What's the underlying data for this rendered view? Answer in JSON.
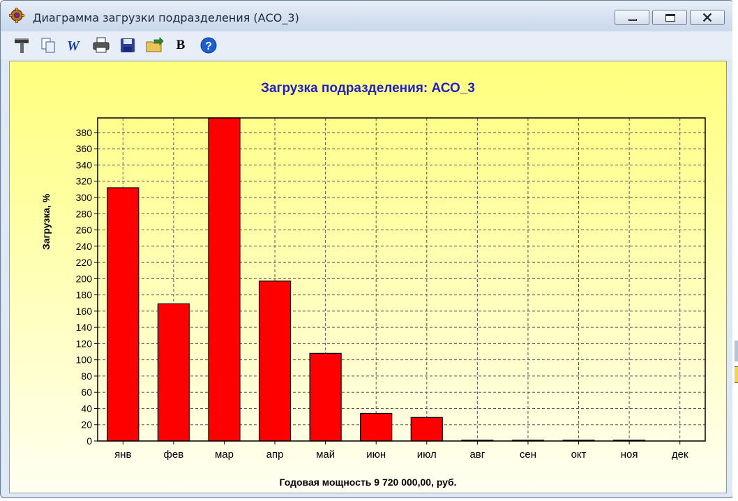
{
  "window": {
    "title": "Диаграмма загрузки подразделения (АСО_3)",
    "icon": "settings-gear-app-icon",
    "controls": [
      "minimize",
      "maximize",
      "close"
    ]
  },
  "toolbar": {
    "buttons": [
      {
        "icon": "hammer-icon"
      },
      {
        "icon": "copy-icon"
      },
      {
        "icon": "word-export-icon"
      },
      {
        "icon": "print-icon"
      },
      {
        "icon": "save-icon"
      },
      {
        "icon": "export-icon"
      },
      {
        "icon": "bold-b-icon",
        "label": "B"
      },
      {
        "icon": "help-icon"
      }
    ]
  },
  "chart_data": {
    "type": "bar",
    "title": "Загрузка подразделения: АСО_3",
    "ylabel": "Загрузка, %",
    "xlabel": "Годовая мощность 9 720 000,00, руб.",
    "categories": [
      "янв",
      "фев",
      "мар",
      "апр",
      "май",
      "июн",
      "июл",
      "авг",
      "сен",
      "окт",
      "ноя",
      "дек"
    ],
    "values": [
      312,
      169,
      398,
      197,
      108,
      34,
      29,
      1,
      1,
      1,
      1,
      0
    ],
    "ylim": [
      0,
      398
    ],
    "yticks": [
      0,
      20,
      40,
      60,
      80,
      100,
      120,
      140,
      160,
      180,
      200,
      220,
      240,
      260,
      280,
      300,
      320,
      340,
      360,
      380
    ],
    "grid": true,
    "bar_color": "#ff0000",
    "background": "yellow-gradient"
  }
}
